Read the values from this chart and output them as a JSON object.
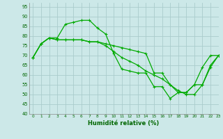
{
  "xlabel": "Humidité relative (%)",
  "background_color": "#cce8e8",
  "grid_color": "#aacccc",
  "line_color": "#00aa00",
  "xlim": [
    -0.5,
    23
  ],
  "ylim": [
    40,
    97
  ],
  "yticks": [
    40,
    45,
    50,
    55,
    60,
    65,
    70,
    75,
    80,
    85,
    90,
    95
  ],
  "xticks": [
    0,
    1,
    2,
    3,
    4,
    5,
    6,
    7,
    8,
    9,
    10,
    11,
    12,
    13,
    14,
    15,
    16,
    17,
    18,
    19,
    20,
    21,
    22,
    23
  ],
  "series": [
    [
      69,
      76,
      79,
      79,
      86,
      87,
      88,
      88,
      84,
      81,
      71,
      63,
      62,
      61,
      61,
      54,
      54,
      48,
      51,
      51,
      55,
      64,
      70,
      70
    ],
    [
      69,
      76,
      79,
      78,
      78,
      78,
      78,
      77,
      77,
      76,
      75,
      74,
      73,
      72,
      71,
      61,
      61,
      55,
      51,
      51,
      55,
      55,
      65,
      70
    ],
    [
      69,
      76,
      79,
      78,
      78,
      78,
      78,
      77,
      77,
      75,
      72,
      69,
      67,
      65,
      62,
      60,
      58,
      55,
      52,
      50,
      50,
      55,
      64,
      70
    ]
  ]
}
